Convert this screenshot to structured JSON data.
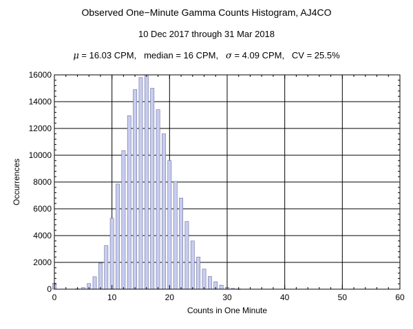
{
  "chart_data": {
    "type": "bar",
    "title": "Observed One−Minute Gamma Counts Histogram, AJ4CO",
    "subtitle": "10 Dec 2017 through 31 Mar 2018",
    "stats": {
      "mean_symbol": "μ",
      "mean_text": " = 16.03 CPM,",
      "median_text": "median = 16 CPM,",
      "sd_symbol": "σ",
      "sd_text": " = 4.09 CPM,",
      "cv_text": "CV = 25.5%"
    },
    "xlabel": "Counts in One Minute",
    "ylabel": "Occurrences",
    "xlim": [
      0,
      60
    ],
    "ylim": [
      0,
      16000
    ],
    "xticks": [
      0,
      10,
      20,
      30,
      40,
      50,
      60
    ],
    "yticks": [
      0,
      2000,
      4000,
      6000,
      8000,
      10000,
      12000,
      14000,
      16000
    ],
    "grid": true,
    "bar_color": "#c8cdf0",
    "bar_edge_color": "#6a6f9a",
    "x": [
      0,
      1,
      2,
      3,
      4,
      5,
      6,
      7,
      8,
      9,
      10,
      11,
      12,
      13,
      14,
      15,
      16,
      17,
      18,
      19,
      20,
      21,
      22,
      23,
      24,
      25,
      26,
      27,
      28,
      29,
      30,
      31,
      32
    ],
    "values": [
      450,
      0,
      0,
      0,
      30,
      120,
      420,
      930,
      1950,
      3250,
      5300,
      7850,
      10350,
      12950,
      14900,
      15800,
      16000,
      15000,
      13400,
      11600,
      9600,
      8050,
      6800,
      5050,
      3600,
      2400,
      1500,
      950,
      550,
      300,
      140,
      60,
      20
    ]
  }
}
